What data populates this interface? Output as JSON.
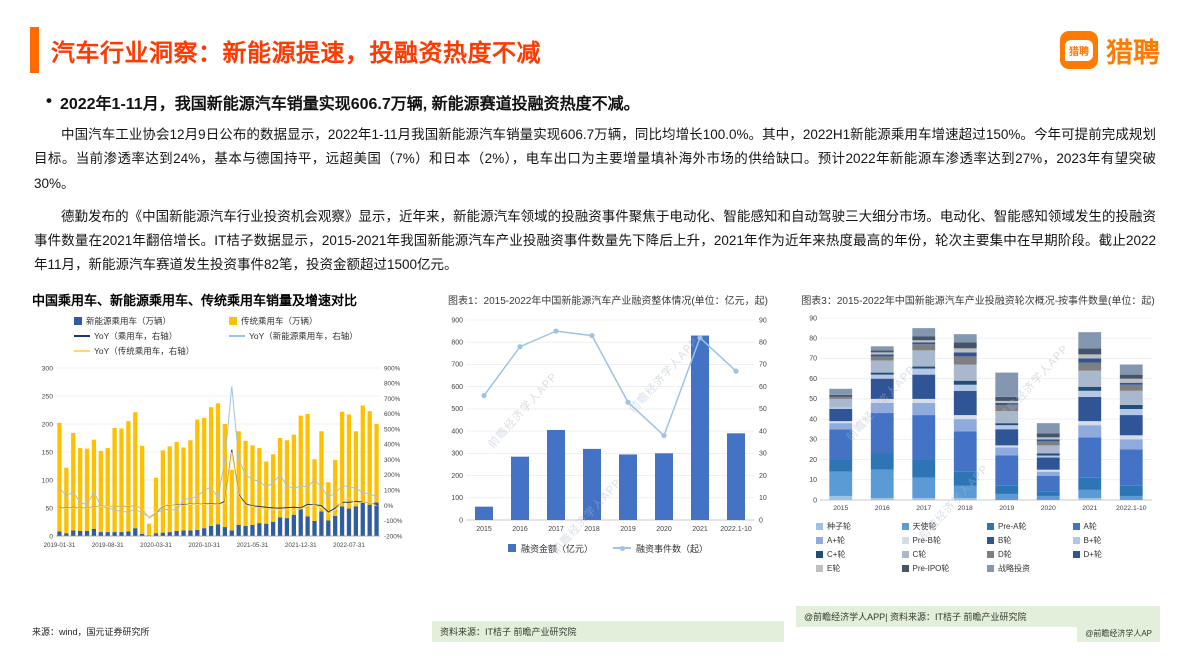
{
  "header": {
    "title": "汽车行业洞察：新能源提速，投融资热度不减",
    "title_color": "#FF3A00",
    "accent_color": "#FF6A00",
    "logo_text": "猎聘",
    "logo_color": "#FF7A00",
    "logo_icon": "liepin-speech-bubble-icon"
  },
  "headline": "2022年1-11月，我国新能源汽车销量实现606.7万辆, 新能源赛道投融资热度不减。",
  "paragraphs": {
    "p1": "中国汽车工业协会12月9日公布的数据显示，2022年1-11月我国新能源汽车销量实现606.7万辆，同比均增长100.0%。其中，2022H1新能源乘用车增速超过150%。今年可提前完成规划目标。当前渗透率达到24%，基本与德国持平，远超美国（7%）和日本（2%），电车出口为主要增量填补海外市场的供给缺口。预计2022年新能源车渗透率达到27%，2023年有望突破30%。",
    "p2": "德勤发布的《中国新能源汽车行业投资机会观察》显示，近年来，新能源汽车领域的投融资事件聚焦于电动化、智能感知和自动驾驶三大细分市场。电动化、智能感知领域发生的投融资事件数量在2021年翻倍增长。IT桔子数据显示，2015-2021年我国新能源汽车产业投融资事件数量先下降后上升，2021年作为近年来热度最高的年份，轮次主要集中在早期阶段。截止2022年11月，新能源汽车赛道发生投资事件82笔，投资金额超过1500亿元。"
  },
  "chart_data": [
    {
      "id": "sales-growth-chart",
      "type": "bar",
      "title": "中国乘用车、新能源乘用车、传统乘用车销量及增速对比",
      "source": "来源：wind，国元证券研究所",
      "x_ticks": [
        "2019-01-31",
        "2019-08-31",
        "2020-03-31",
        "2020-10-31",
        "2021-05-31",
        "2021-12-31",
        "2022-07-31"
      ],
      "tick_interval": 7,
      "left_axis": {
        "min": 0,
        "max": 300,
        "step": 50
      },
      "right_axis": {
        "min": -200,
        "max": 900,
        "step": 100,
        "suffix": "%"
      },
      "bar_series": [
        {
          "name": "新能源乘用车（万辆）",
          "color": "#2F5D9E",
          "values": [
            8,
            5,
            10,
            9,
            9,
            13,
            7,
            7,
            7,
            7,
            8,
            14,
            4,
            1,
            5,
            6,
            7,
            9,
            10,
            10,
            11,
            14,
            18,
            21,
            16,
            10,
            20,
            18,
            20,
            23,
            22,
            25,
            33,
            32,
            38,
            48,
            35,
            27,
            44,
            28,
            36,
            53,
            49,
            53,
            61,
            56,
            60
          ]
        },
        {
          "name": "传统乘用车（万辆）",
          "color": "#FFC000",
          "values": [
            194,
            117,
            174,
            148,
            147,
            159,
            145,
            150,
            186,
            185,
            197,
            207,
            157,
            21,
            99,
            147,
            153,
            159,
            148,
            161,
            197,
            197,
            212,
            216,
            184,
            108,
            167,
            152,
            142,
            134,
            111,
            121,
            142,
            139,
            143,
            167,
            183,
            110,
            143,
            68,
            100,
            169,
            168,
            134,
            172,
            167,
            140
          ]
        }
      ],
      "line_series": [
        {
          "name": "YoY（乘用车，右轴）",
          "color": "#1F3864",
          "values": [
            -16,
            -18,
            -12,
            -17,
            -17,
            -8,
            -4,
            -7,
            -6,
            -6,
            -4,
            -1,
            -20,
            -82,
            -48,
            -3,
            2,
            2,
            6,
            9,
            8,
            9,
            12,
            7,
            27,
            365,
            73,
            11,
            -2,
            -7,
            -12,
            -16,
            -17,
            -14,
            -12,
            -16,
            7,
            5,
            -1,
            -43,
            -17,
            22,
            20,
            28,
            21,
            18,
            5
          ]
        },
        {
          "name": "YoY（新能源乘用车，右轴）",
          "color": "#9DC3E6",
          "values": [
            120,
            60,
            90,
            20,
            5,
            90,
            -5,
            -15,
            -30,
            -40,
            -42,
            -25,
            -50,
            -75,
            -48,
            -30,
            -25,
            -33,
            40,
            45,
            60,
            100,
            120,
            50,
            300,
            780,
            300,
            200,
            170,
            156,
            120,
            150,
            200,
            129,
            111,
            129,
            119,
            170,
            120,
            56,
            80,
            130,
            123,
            112,
            85,
            75,
            58
          ]
        },
        {
          "name": "YoY（传统乘用车，右轴）",
          "color": "#FFD966",
          "values": [
            -18,
            -20,
            -14,
            -18,
            -18,
            -10,
            -5,
            -7,
            -5,
            -5,
            -3,
            -2,
            -19,
            -82,
            -43,
            -1,
            4,
            0,
            2,
            7,
            6,
            6,
            8,
            4,
            17,
            350,
            65,
            3,
            -7,
            -16,
            -25,
            -25,
            -28,
            -29,
            -33,
            -23,
            -1,
            2,
            -14,
            -55,
            -30,
            26,
            51,
            11,
            21,
            20,
            -2
          ]
        }
      ]
    },
    {
      "id": "financing-overview-chart",
      "type": "bar",
      "title": "图表1：2015-2022年中国新能源汽车产业融资整体情况(单位：亿元，起)",
      "categories": [
        "2015",
        "2016",
        "2017",
        "2018",
        "2019",
        "2020",
        "2021",
        "2022.1-10"
      ],
      "left_axis": {
        "min": 0,
        "max": 900,
        "step": 100
      },
      "right_axis": {
        "min": 0,
        "max": 90,
        "step": 10
      },
      "bars": {
        "name": "融资金额（亿元）",
        "color": "#4472C4",
        "values": [
          60,
          285,
          405,
          320,
          295,
          300,
          830,
          390
        ]
      },
      "line": {
        "name": "融资事件数（起）",
        "color": "#9DC3E6",
        "values": [
          56,
          78,
          85,
          83,
          53,
          38,
          82,
          67
        ]
      },
      "source": "资料来源：IT桔子 前瞻产业研究院",
      "watermark": "前瞻经济学人APP"
    },
    {
      "id": "financing-rounds-chart",
      "type": "bar",
      "title": "图表3：2015-2022年中国新能源汽车产业投融资轮次概况-按事件数量(单位：起)",
      "categories": [
        "2015",
        "2016",
        "2017",
        "2018",
        "2019",
        "2020",
        "2021",
        "2022.1-10"
      ],
      "y_axis": {
        "min": 0,
        "max": 90,
        "step": 10
      },
      "series": [
        {
          "name": "种子轮",
          "color": "#9DC3E6",
          "values": [
            2,
            1,
            1,
            1,
            0,
            0,
            1,
            0
          ]
        },
        {
          "name": "天使轮",
          "color": "#5B9BD5",
          "values": [
            12,
            14,
            10,
            6,
            3,
            2,
            4,
            2
          ]
        },
        {
          "name": "Pre-A轮",
          "color": "#2E75B6",
          "values": [
            6,
            8,
            9,
            7,
            4,
            2,
            6,
            5
          ]
        },
        {
          "name": "A轮",
          "color": "#4472C4",
          "values": [
            15,
            20,
            22,
            20,
            15,
            8,
            20,
            18
          ]
        },
        {
          "name": "A+轮",
          "color": "#8FAADC",
          "values": [
            3,
            5,
            6,
            6,
            4,
            2,
            6,
            5
          ]
        },
        {
          "name": "Pre-B轮",
          "color": "#D6DCE5",
          "values": [
            1,
            2,
            2,
            2,
            1,
            1,
            2,
            2
          ]
        },
        {
          "name": "B轮",
          "color": "#2F5597",
          "values": [
            6,
            10,
            12,
            12,
            8,
            6,
            12,
            10
          ]
        },
        {
          "name": "B+轮",
          "color": "#B4C7E7",
          "values": [
            1,
            2,
            3,
            3,
            2,
            1,
            3,
            3
          ]
        },
        {
          "name": "C+轮",
          "color": "#1F4E79",
          "values": [
            0,
            1,
            1,
            2,
            1,
            1,
            2,
            2
          ]
        },
        {
          "name": "C轮",
          "color": "#A9B8CC",
          "values": [
            4,
            6,
            8,
            8,
            6,
            4,
            8,
            7
          ]
        },
        {
          "name": "D轮",
          "color": "#7F7F7F",
          "values": [
            1,
            2,
            3,
            4,
            3,
            2,
            4,
            3
          ]
        },
        {
          "name": "D+轮",
          "color": "#305496",
          "values": [
            0,
            1,
            1,
            2,
            1,
            1,
            2,
            1
          ]
        },
        {
          "name": "E轮",
          "color": "#BFBFBF",
          "values": [
            0,
            1,
            1,
            2,
            1,
            1,
            2,
            2
          ]
        },
        {
          "name": "Pre-IPO轮",
          "color": "#44546A",
          "values": [
            1,
            1,
            2,
            3,
            2,
            2,
            3,
            2
          ]
        },
        {
          "name": "战略投资",
          "color": "#8497B0",
          "values": [
            3,
            2,
            4,
            4,
            12,
            5,
            8,
            5
          ]
        }
      ],
      "source": "@前瞻经济学人APP| 资料来源：IT桔子 前瞻产业研究院",
      "footer_right": "@前瞻经济学人AP",
      "watermark": "前瞻经济学人APP"
    }
  ]
}
